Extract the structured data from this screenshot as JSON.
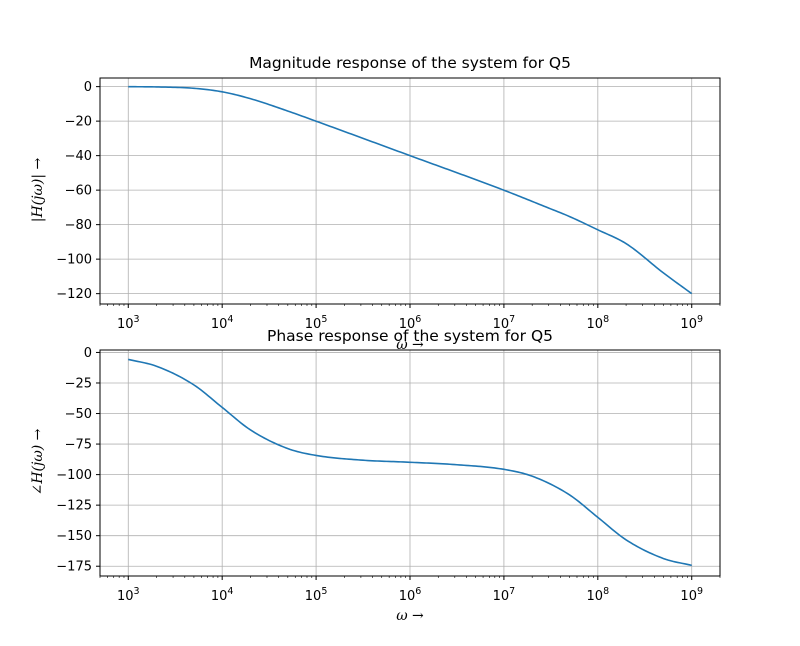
{
  "chart_data": [
    {
      "type": "line",
      "title": "Magnitude response of the system for Q5",
      "xlabel": "ω →",
      "ylabel": "|H(jω)| →",
      "xscale": "log",
      "xlim": [
        500,
        2000000000
      ],
      "ylim": [
        -126,
        5
      ],
      "grid": true,
      "x_ticks": [
        1000,
        10000,
        100000,
        1000000,
        10000000,
        100000000,
        1000000000
      ],
      "x_tick_labels": [
        [
          "10",
          "3"
        ],
        [
          "10",
          "4"
        ],
        [
          "10",
          "5"
        ],
        [
          "10",
          "6"
        ],
        [
          "10",
          "7"
        ],
        [
          "10",
          "8"
        ],
        [
          "10",
          "9"
        ]
      ],
      "y_ticks": [
        0,
        -20,
        -40,
        -60,
        -80,
        -100,
        -120
      ],
      "y_tick_labels": [
        "0",
        "−20",
        "−40",
        "−60",
        "−80",
        "−100",
        "−120"
      ],
      "color": "#1f77b4",
      "series": [
        {
          "x": [
            1000,
            2000,
            5000,
            10000,
            20000,
            50000,
            100000,
            1000000,
            10000000,
            30000000,
            50000000,
            100000000,
            200000000,
            500000000,
            1000000000
          ],
          "values": [
            -0.04,
            -0.17,
            -0.97,
            -3.01,
            -6.99,
            -14.15,
            -20.04,
            -40.0,
            -60.04,
            -70.4,
            -75.3,
            -83.0,
            -91.0,
            -108.0,
            -120.0
          ]
        }
      ]
    },
    {
      "type": "line",
      "title": "Phase response of the system for Q5",
      "xlabel": "ω →",
      "ylabel": "∠H(jω) →",
      "xscale": "log",
      "xlim": [
        500,
        2000000000
      ],
      "ylim": [
        -183,
        2
      ],
      "grid": true,
      "x_ticks": [
        1000,
        10000,
        100000,
        1000000,
        10000000,
        100000000,
        1000000000
      ],
      "x_tick_labels": [
        [
          "10",
          "3"
        ],
        [
          "10",
          "4"
        ],
        [
          "10",
          "5"
        ],
        [
          "10",
          "6"
        ],
        [
          "10",
          "7"
        ],
        [
          "10",
          "8"
        ],
        [
          "10",
          "9"
        ]
      ],
      "y_ticks": [
        0,
        -25,
        -50,
        -75,
        -100,
        -125,
        -150,
        -175
      ],
      "y_tick_labels": [
        "0",
        "−25",
        "−50",
        "−75",
        "−100",
        "−125",
        "−150",
        "−175"
      ],
      "color": "#1f77b4",
      "series": [
        {
          "x": [
            1000,
            2000,
            5000,
            10000,
            20000,
            50000,
            100000,
            300000,
            1000000,
            3000000,
            10000000,
            20000000,
            50000000,
            100000000,
            200000000,
            500000000,
            1000000000
          ],
          "values": [
            -5.7,
            -11.3,
            -26.6,
            -45.0,
            -63.4,
            -78.7,
            -84.3,
            -88.1,
            -89.9,
            -91.8,
            -95.7,
            -101.3,
            -116.6,
            -135.0,
            -153.4,
            -168.7,
            -174.3
          ]
        }
      ]
    }
  ]
}
